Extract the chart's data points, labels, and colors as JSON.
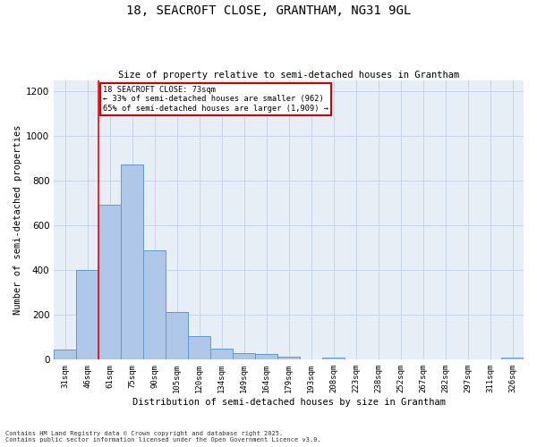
{
  "title": "18, SEACROFT CLOSE, GRANTHAM, NG31 9GL",
  "subtitle": "Size of property relative to semi-detached houses in Grantham",
  "xlabel": "Distribution of semi-detached houses by size in Grantham",
  "ylabel": "Number of semi-detached properties",
  "footnote": "Contains HM Land Registry data © Crown copyright and database right 2025.\nContains public sector information licensed under the Open Government Licence v3.0.",
  "categories": [
    "31sqm",
    "46sqm",
    "61sqm",
    "75sqm",
    "90sqm",
    "105sqm",
    "120sqm",
    "134sqm",
    "149sqm",
    "164sqm",
    "179sqm",
    "193sqm",
    "208sqm",
    "223sqm",
    "238sqm",
    "252sqm",
    "267sqm",
    "282sqm",
    "297sqm",
    "311sqm",
    "326sqm"
  ],
  "values": [
    47,
    400,
    695,
    875,
    490,
    215,
    105,
    48,
    28,
    25,
    13,
    3,
    10,
    3,
    3,
    3,
    1,
    1,
    1,
    1,
    8
  ],
  "bar_color": "#aec6e8",
  "bar_edge_color": "#5b9bd5",
  "red_line_bin_index": 2,
  "annotation_title": "18 SEACROFT CLOSE: 73sqm",
  "annotation_line1": "← 33% of semi-detached houses are smaller (962)",
  "annotation_line2": "65% of semi-detached houses are larger (1,909) →",
  "annotation_box_color": "#cc0000",
  "ylim": [
    0,
    1250
  ],
  "yticks": [
    0,
    200,
    400,
    600,
    800,
    1000,
    1200
  ],
  "grid_color": "#c8d4e8",
  "bg_color": "#e8eef6"
}
